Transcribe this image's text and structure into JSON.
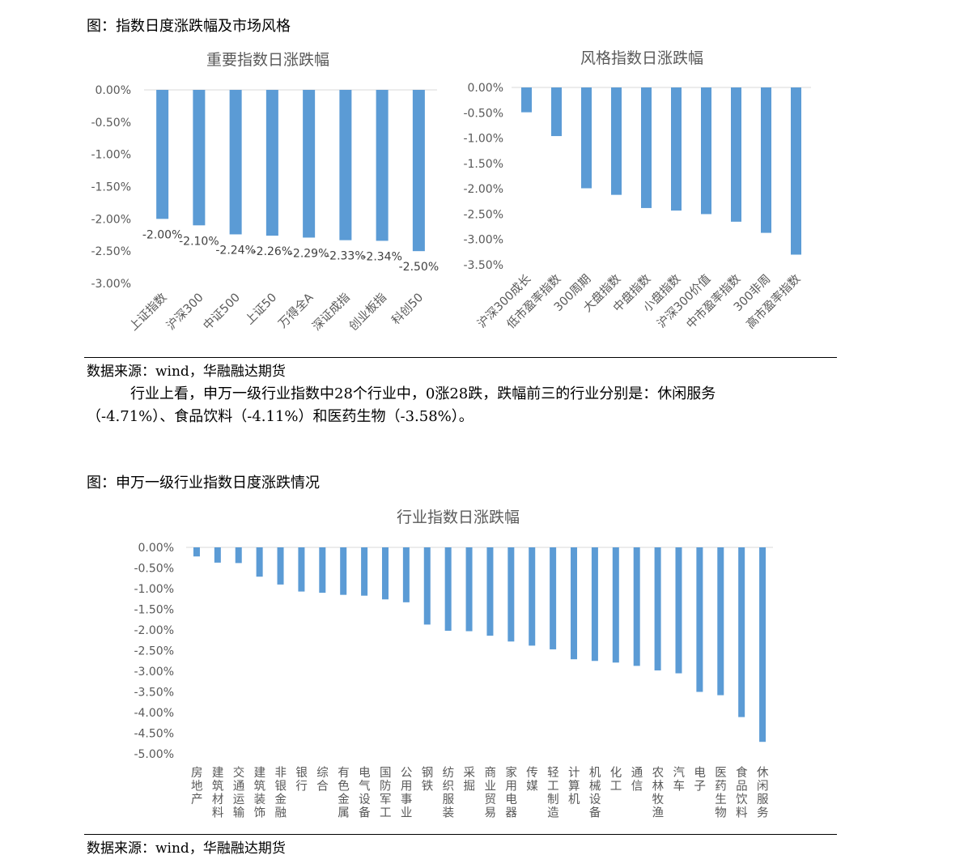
{
  "captions": {
    "fig1": "图：指数日度涨跌幅及市场风格",
    "fig2": "图：申万一级行业指数日度涨跌情况",
    "source1": "数据来源：wind，华融融达期货",
    "source2": "数据来源：wind，华融融达期货"
  },
  "paragraph": {
    "line1": "行业上看，申万一级行业指数中28个行业中，0涨28跌，跌幅前三的行业分别是：休闲服务",
    "line2": "（-4.71%）、食品饮料（-4.11%）和医药生物（-3.58%）。"
  },
  "chart_data": [
    {
      "id": "major",
      "type": "bar",
      "title": "重要指数日涨跌幅",
      "categories": [
        "上证指数",
        "沪深300",
        "中证500",
        "上证50",
        "万得全A",
        "深证成指",
        "创业板指",
        "科创50"
      ],
      "values": [
        -2.0,
        -2.1,
        -2.24,
        -2.26,
        -2.29,
        -2.33,
        -2.34,
        -2.5
      ],
      "data_labels": [
        "-2.00%",
        "-2.10%",
        "-2.24%",
        "-2.26%",
        "-2.29%",
        "-2.33%",
        "-2.34%",
        "-2.50%"
      ],
      "yticks": [
        "0.00%",
        "-0.50%",
        "-1.00%",
        "-1.50%",
        "-2.00%",
        "-2.50%",
        "-3.00%"
      ],
      "ylim": [
        -3.0,
        0
      ],
      "bar_color": "#5b9bd5"
    },
    {
      "id": "style",
      "type": "bar",
      "title": "风格指数日涨跌幅",
      "categories": [
        "沪深300成长",
        "低市盈率指数",
        "300周期",
        "大盘指数",
        "中盘指数",
        "小盘指数",
        "沪深300价值",
        "中市盈率指数",
        "300非周",
        "高市盈率指数"
      ],
      "values": [
        -0.49,
        -0.96,
        -1.99,
        -2.12,
        -2.38,
        -2.43,
        -2.5,
        -2.65,
        -2.87,
        -3.3
      ],
      "yticks": [
        "0.00%",
        "-0.50%",
        "-1.00%",
        "-1.50%",
        "-2.00%",
        "-2.50%",
        "-3.00%",
        "-3.50%"
      ],
      "ylim": [
        -3.5,
        0
      ],
      "bar_color": "#5b9bd5"
    },
    {
      "id": "industry",
      "type": "bar",
      "title": "行业指数日涨跌幅",
      "categories": [
        "房地产",
        "建筑材料",
        "交通运输",
        "建筑装饰",
        "非银金融",
        "银行",
        "综合",
        "有色金属",
        "电气设备",
        "国防军工",
        "公用事业",
        "钢铁",
        "纺织服装",
        "采掘",
        "商业贸易",
        "家用电器",
        "传媒",
        "轻工制造",
        "计算机",
        "机械设备",
        "化工",
        "通信",
        "农林牧渔",
        "汽车",
        "电子",
        "医药生物",
        "食品饮料",
        "休闲服务"
      ],
      "values": [
        -0.22,
        -0.37,
        -0.38,
        -0.71,
        -0.9,
        -1.07,
        -1.1,
        -1.15,
        -1.17,
        -1.26,
        -1.33,
        -1.87,
        -2.02,
        -2.03,
        -2.14,
        -2.28,
        -2.38,
        -2.47,
        -2.71,
        -2.75,
        -2.79,
        -2.87,
        -2.98,
        -3.05,
        -3.5,
        -3.58,
        -4.11,
        -4.71
      ],
      "yticks": [
        "0.00%",
        "-0.50%",
        "-1.00%",
        "-1.50%",
        "-2.00%",
        "-2.50%",
        "-3.00%",
        "-3.50%",
        "-4.00%",
        "-4.50%",
        "-5.00%"
      ],
      "ylim": [
        -5.0,
        0
      ],
      "bar_color": "#5b9bd5"
    }
  ]
}
